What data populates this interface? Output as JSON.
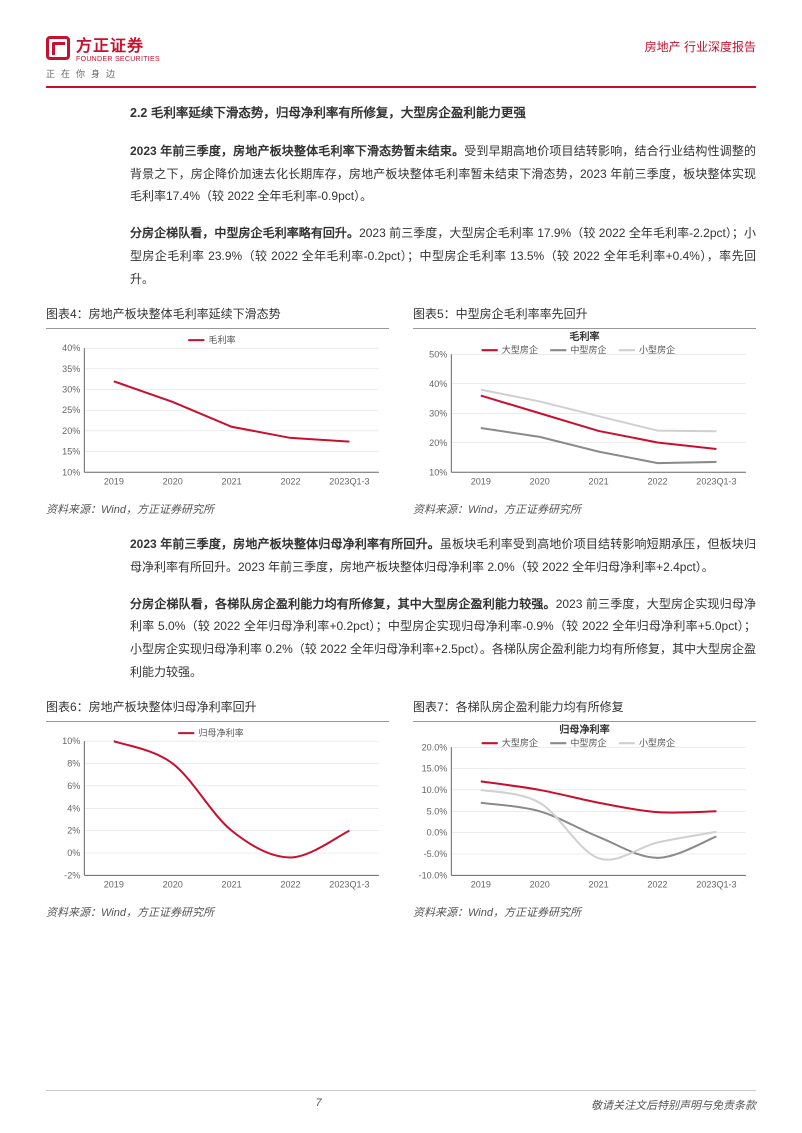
{
  "header": {
    "logo_zh": "方正证券",
    "logo_en": "FOUNDER SECURITIES",
    "tagline": "正在你身边",
    "doc_type": "房地产 行业深度报告"
  },
  "section_title": "2.2 毛利率延续下滑态势，归母净利率有所修复，大型房企盈利能力更强",
  "para1_bold": "2023 年前三季度，房地产板块整体毛利率下滑态势暂未结束。",
  "para1_rest": "受到早期高地价项目结转影响，结合行业结构性调整的背景之下，房企降价加速去化长期库存，房地产板块整体毛利率暂未结束下滑态势，2023 年前三季度，板块整体实现毛利率17.4%（较 2022 全年毛利率-0.9pct）。",
  "para2_bold": "分房企梯队看，中型房企毛利率略有回升。",
  "para2_rest": "2023 前三季度，大型房企毛利率 17.9%（较 2022 全年毛利率-2.2pct）；小型房企毛利率 23.9%（较 2022 全年毛利率-0.2pct）；中型房企毛利率 13.5%（较 2022 全年毛利率+0.4%），率先回升。",
  "fig4": {
    "title": "图表4：房地产板块整体毛利率延续下滑态势",
    "source": "资料来源：Wind，方正证券研究所",
    "type": "line",
    "categories": [
      "2019",
      "2020",
      "2021",
      "2022",
      "2023Q1-3"
    ],
    "series": [
      {
        "name": "毛利率",
        "color": "#c8102e",
        "width": 2,
        "values": [
          32,
          27,
          21,
          18.3,
          17.4
        ]
      }
    ],
    "ylim": [
      10,
      40
    ],
    "ytick_step": 5,
    "legend_pos": "top-center",
    "grid_color": "#d9d9d9",
    "axis_color": "#666",
    "background": "#ffffff",
    "label_fontsize": 9
  },
  "fig5": {
    "title": "图表5：中型房企毛利率率先回升",
    "chart_title": "毛利率",
    "source": "资料来源：Wind，方正证券研究所",
    "type": "line",
    "categories": [
      "2019",
      "2020",
      "2021",
      "2022",
      "2023Q1-3"
    ],
    "series": [
      {
        "name": "大型房企",
        "color": "#c8102e",
        "width": 2,
        "values": [
          36,
          30,
          24,
          20.1,
          17.9
        ]
      },
      {
        "name": "中型房企",
        "color": "#8a8a8a",
        "width": 2,
        "values": [
          25,
          22,
          17,
          13.1,
          13.5
        ]
      },
      {
        "name": "小型房企",
        "color": "#d0d0d0",
        "width": 2,
        "values": [
          38,
          34,
          29,
          24.1,
          23.9
        ]
      }
    ],
    "ylim": [
      10,
      50
    ],
    "ytick_step": 10,
    "legend_pos": "top-center",
    "grid_color": "#d9d9d9",
    "axis_color": "#666",
    "background": "#ffffff",
    "label_fontsize": 9
  },
  "para3_bold": "2023 年前三季度，房地产板块整体归母净利率有所回升。",
  "para3_rest": "虽板块毛利率受到高地价项目结转影响短期承压，但板块归母净利率有所回升。2023 年前三季度，房地产板块整体归母净利率 2.0%（较 2022 全年归母净利率+2.4pct）。",
  "para4_bold": "分房企梯队看，各梯队房企盈利能力均有所修复，其中大型房企盈利能力较强。",
  "para4_rest": "2023 前三季度，大型房企实现归母净利率 5.0%（较 2022 全年归母净利率+0.2pct）；中型房企实现归母净利率-0.9%（较 2022 全年归母净利率+5.0pct）；小型房企实现归母净利率 0.2%（较 2022 全年归母净利率+2.5pct）。各梯队房企盈利能力均有所修复，其中大型房企盈利能力较强。",
  "fig6": {
    "title": "图表6：房地产板块整体归母净利率回升",
    "source": "资料来源：Wind，方正证券研究所",
    "type": "line",
    "categories": [
      "2019",
      "2020",
      "2021",
      "2022",
      "2023Q1-3"
    ],
    "series": [
      {
        "name": "归母净利率",
        "color": "#c8102e",
        "width": 2,
        "values": [
          10,
          8,
          2,
          -0.4,
          2.0
        ]
      }
    ],
    "ylim": [
      -2,
      10
    ],
    "ytick_step": 2,
    "legend_pos": "top-center",
    "grid_color": "#d9d9d9",
    "axis_color": "#666",
    "background": "#ffffff",
    "label_fontsize": 9,
    "smooth": true
  },
  "fig7": {
    "title": "图表7：各梯队房企盈利能力均有所修复",
    "chart_title": "归母净利率",
    "source": "资料来源：Wind，方正证券研究所",
    "type": "line",
    "categories": [
      "2019",
      "2020",
      "2021",
      "2022",
      "2023Q1-3"
    ],
    "series": [
      {
        "name": "大型房企",
        "color": "#c8102e",
        "width": 2,
        "values": [
          12,
          10,
          7,
          4.8,
          5.0
        ]
      },
      {
        "name": "中型房企",
        "color": "#8a8a8a",
        "width": 2,
        "values": [
          7,
          5,
          -1,
          -5.9,
          -0.9
        ]
      },
      {
        "name": "小型房企",
        "color": "#d0d0d0",
        "width": 2,
        "values": [
          10,
          7,
          -6,
          -2.3,
          0.2
        ]
      }
    ],
    "ylim": [
      -10,
      20
    ],
    "ytick_step": 5,
    "ysuffix": ".0%",
    "legend_pos": "top-center",
    "grid_color": "#d9d9d9",
    "axis_color": "#666",
    "background": "#ffffff",
    "label_fontsize": 9,
    "smooth": true
  },
  "footer": {
    "page": "7",
    "disclaimer": "敬请关注文后特别声明与免责条款"
  }
}
